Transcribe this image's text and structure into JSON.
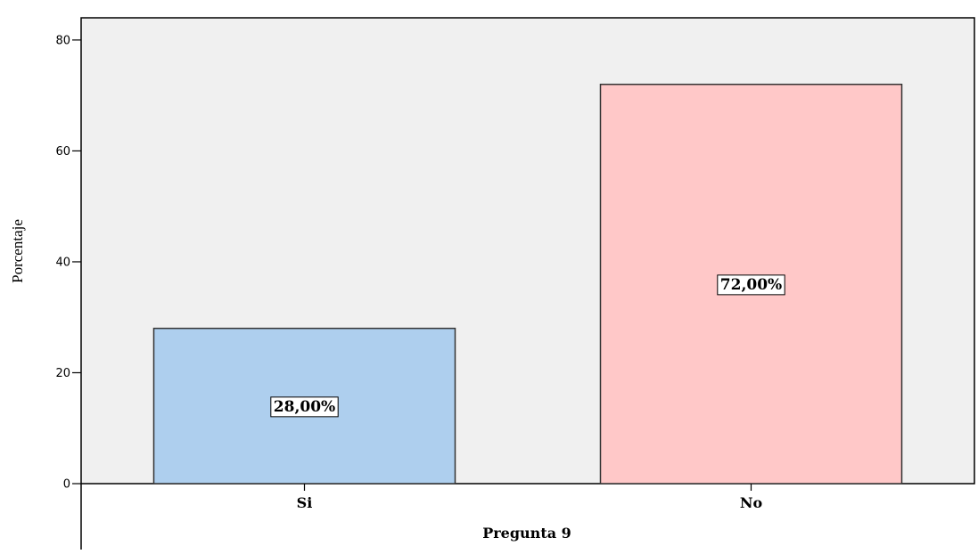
{
  "chart_data": {
    "type": "bar",
    "categories": [
      "Si",
      "No"
    ],
    "values": [
      28,
      72
    ],
    "data_labels": [
      "28,00%",
      "72,00%"
    ],
    "xlabel": "Pregunta 9",
    "ylabel": "Porcentaje",
    "ylim": [
      0,
      84
    ],
    "yticks": [
      0,
      20,
      40,
      60,
      80
    ],
    "grid": false,
    "legend": "none",
    "colors": {
      "plot_background": "#f0f0f0",
      "bars": [
        "#aecfee",
        "#ffc8c8"
      ],
      "bar_outline": "#333333"
    }
  }
}
